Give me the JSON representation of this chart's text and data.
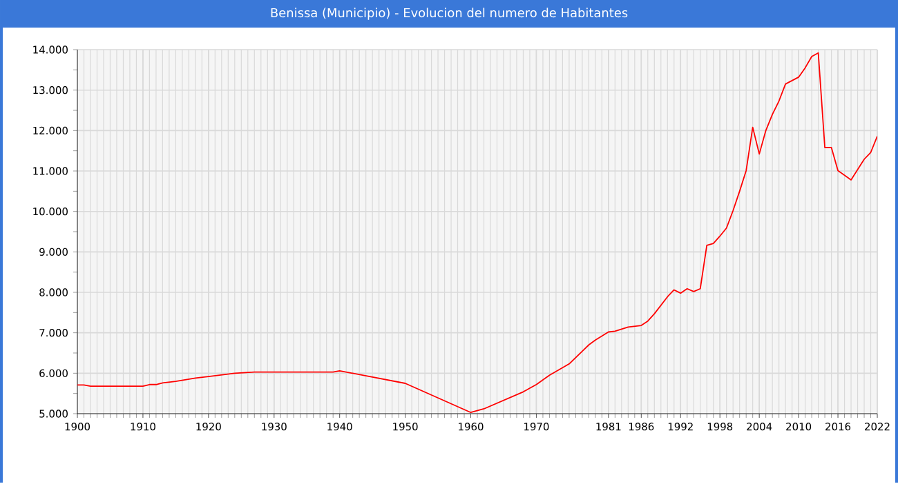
{
  "chart_data": {
    "type": "line",
    "title": "Benissa (Municipio) - Evolucion del numero de Habitantes",
    "x": [
      1900,
      1901,
      1902,
      1910,
      1911,
      1912,
      1913,
      1915,
      1918,
      1920,
      1924,
      1927,
      1939,
      1940,
      1950,
      1960,
      1962,
      1965,
      1968,
      1970,
      1972,
      1975,
      1978,
      1979,
      1981,
      1982,
      1984,
      1986,
      1987,
      1988,
      1990,
      1991,
      1992,
      1993,
      1994,
      1995,
      1996,
      1997,
      1998,
      1999,
      2000,
      2001,
      2002,
      2003,
      2004,
      2005,
      2006,
      2007,
      2008,
      2010,
      2011,
      2012,
      2013,
      2014,
      2015,
      2016,
      2018,
      2020,
      2021,
      2022
    ],
    "series": [
      {
        "color": "#ff0000",
        "values": [
          5710,
          5710,
          5680,
          5680,
          5720,
          5720,
          5760,
          5800,
          5880,
          5920,
          6000,
          6030,
          6030,
          6060,
          5750,
          5030,
          5120,
          5330,
          5540,
          5720,
          5950,
          6230,
          6700,
          6820,
          7020,
          7040,
          7140,
          7180,
          7290,
          7470,
          7890,
          8060,
          7980,
          8090,
          8020,
          8090,
          9160,
          9210,
          9390,
          9590,
          10020,
          10500,
          11010,
          12080,
          11420,
          12000,
          12400,
          12730,
          13150,
          13320,
          13550,
          13830,
          13920,
          11580,
          11580,
          11010,
          10780,
          11290,
          11460,
          11860
        ]
      }
    ],
    "xlim": [
      1900,
      2022
    ],
    "xticks": [
      1900,
      1910,
      1920,
      1930,
      1940,
      1950,
      1960,
      1970,
      1981,
      1986,
      1992,
      1998,
      2004,
      2010,
      2016,
      2022
    ],
    "ylim": [
      5000,
      14000
    ],
    "yticks": [
      {
        "value": 5000,
        "label": "5.000"
      },
      {
        "value": 6000,
        "label": "6.000"
      },
      {
        "value": 7000,
        "label": "7.000"
      },
      {
        "value": 8000,
        "label": "8.000"
      },
      {
        "value": 9000,
        "label": "9.000"
      },
      {
        "value": 10000,
        "label": "10.000"
      },
      {
        "value": 11000,
        "label": "11.000"
      },
      {
        "value": 12000,
        "label": "12.000"
      },
      {
        "value": 13000,
        "label": "13.000"
      },
      {
        "value": 14000,
        "label": "14.000"
      }
    ],
    "grid": true,
    "marker": "none",
    "line_style": "solid"
  }
}
